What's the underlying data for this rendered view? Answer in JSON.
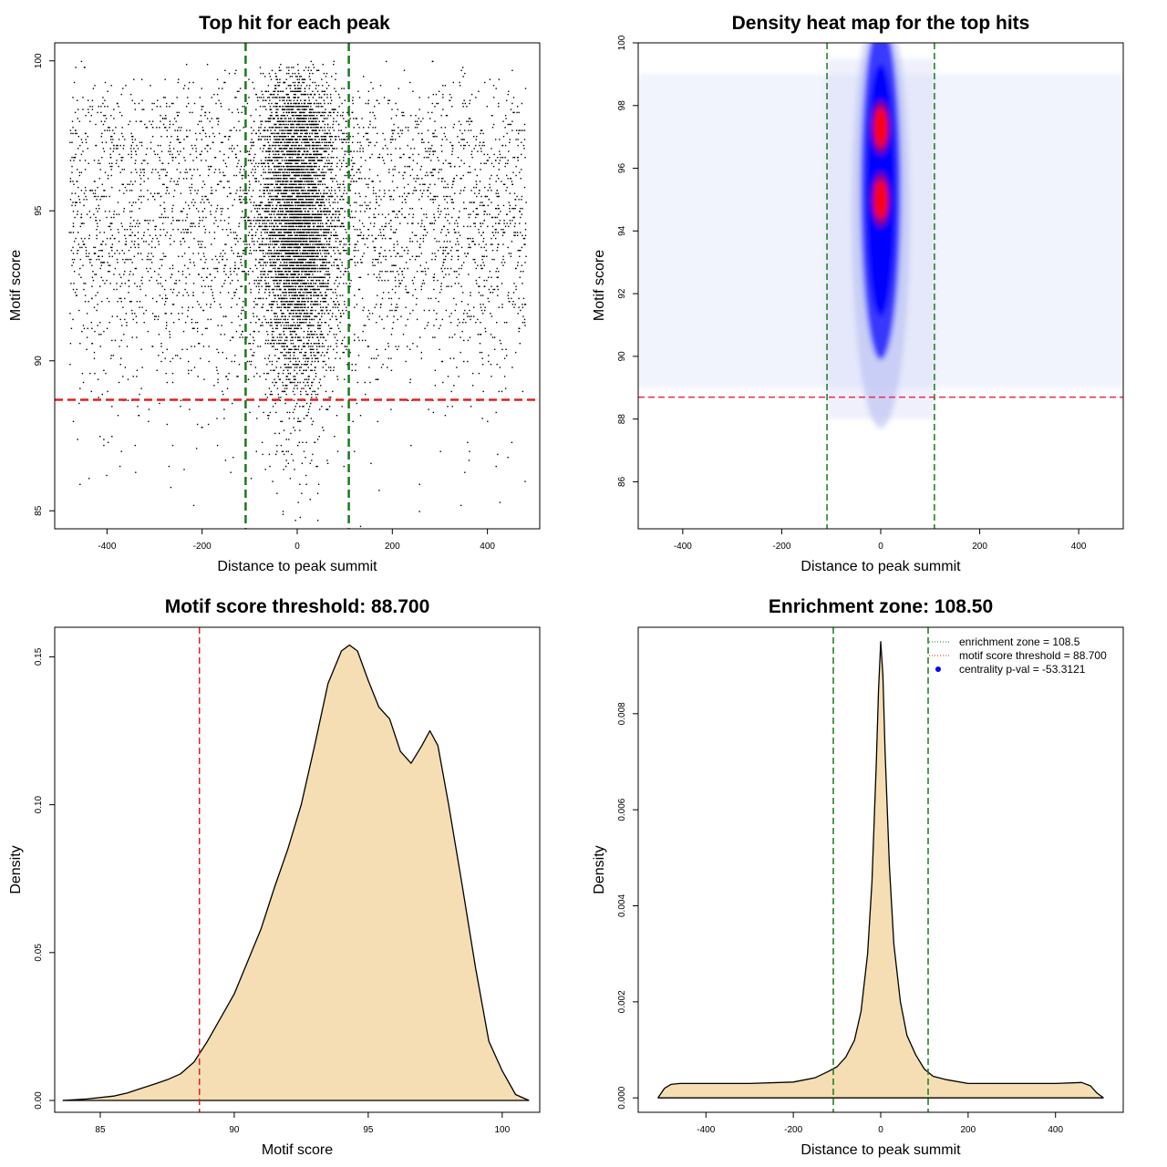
{
  "colors": {
    "threshold_line": "#e02020",
    "zone_line": "#1a7a1a",
    "fill": "#f5deb3",
    "point": "#000000",
    "heat_high": "#ff0000",
    "heat_mid": "#0000ff"
  },
  "chart_data": [
    {
      "type": "scatter",
      "title": "Top hit for each peak",
      "xlabel": "Distance to peak summit",
      "ylabel": "Motif score",
      "xlim": [
        -510,
        510
      ],
      "ylim": [
        84.4,
        100.6
      ],
      "xticks": [
        "-400",
        "-200",
        "0",
        "200",
        "400"
      ],
      "xtick_values": [
        -400,
        -200,
        0,
        200,
        400
      ],
      "yticks": [
        "85",
        "90",
        "95",
        "100"
      ],
      "ytick_values": [
        85,
        90,
        95,
        100
      ],
      "point_cloud": {
        "n_points": 9000,
        "background_x_range": [
          -480,
          480
        ],
        "central_sd": 40,
        "score_range": [
          84.5,
          100
        ],
        "central_fraction": 0.55
      },
      "vlines": [
        -108.5,
        108.5
      ],
      "hline": 88.7
    },
    {
      "type": "heatmap",
      "title": "Density heat map for the top hits",
      "xlabel": "Distance to peak summit",
      "ylabel": "Motif score",
      "xlim": [
        -490,
        490
      ],
      "ylim": [
        84.5,
        100
      ],
      "xticks": [
        "-400",
        "-200",
        "0",
        "200",
        "400"
      ],
      "xtick_values": [
        -400,
        -200,
        0,
        200,
        400
      ],
      "yticks": [
        "86",
        "88",
        "90",
        "92",
        "94",
        "96",
        "98",
        "100"
      ],
      "ytick_values": [
        86,
        88,
        90,
        92,
        94,
        96,
        98,
        100
      ],
      "density_peaks": [
        {
          "x": 0,
          "y": 97.3,
          "weight": 1.0
        },
        {
          "x": 0,
          "y": 95.0,
          "weight": 1.0
        }
      ],
      "vlines": [
        -108.5,
        108.5
      ],
      "hline": 88.7
    },
    {
      "type": "area",
      "title": "Motif score threshold: 88.700",
      "xlabel": "Motif score",
      "ylabel": "Density",
      "xlim": [
        83.3,
        101.4
      ],
      "ylim": [
        -0.004,
        0.16
      ],
      "xticks": [
        "85",
        "90",
        "95",
        "100"
      ],
      "xtick_values": [
        85,
        90,
        95,
        100
      ],
      "yticks": [
        "0.00",
        "0.05",
        "0.10",
        "0.15"
      ],
      "ytick_values": [
        0,
        0.05,
        0.1,
        0.15
      ],
      "x": [
        83.6,
        84.5,
        85.5,
        86.0,
        86.5,
        87.0,
        87.5,
        88.0,
        88.5,
        89.0,
        89.5,
        90.0,
        90.5,
        91.0,
        91.5,
        92.0,
        92.5,
        93.0,
        93.5,
        94.0,
        94.3,
        94.6,
        95.0,
        95.4,
        95.8,
        96.2,
        96.6,
        97.0,
        97.3,
        97.6,
        98.0,
        98.5,
        99.0,
        99.5,
        100.0,
        100.5,
        101.0
      ],
      "y": [
        0.0,
        0.0005,
        0.0015,
        0.0025,
        0.004,
        0.0055,
        0.007,
        0.009,
        0.013,
        0.02,
        0.028,
        0.036,
        0.047,
        0.058,
        0.072,
        0.085,
        0.1,
        0.12,
        0.141,
        0.152,
        0.154,
        0.152,
        0.142,
        0.133,
        0.129,
        0.118,
        0.114,
        0.12,
        0.125,
        0.12,
        0.1,
        0.073,
        0.045,
        0.02,
        0.01,
        0.002,
        0.0
      ],
      "vline": 88.7
    },
    {
      "type": "area",
      "title": "Enrichment zone: 108.50",
      "xlabel": "Distance to peak summit",
      "ylabel": "Density",
      "xlim": [
        -555,
        555
      ],
      "ylim": [
        -0.0003,
        0.0098
      ],
      "xticks": [
        "-400",
        "-200",
        "0",
        "200",
        "400"
      ],
      "xtick_values": [
        -400,
        -200,
        0,
        200,
        400
      ],
      "yticks": [
        "0.000",
        "0.002",
        "0.004",
        "0.006",
        "0.008"
      ],
      "ytick_values": [
        0,
        0.002,
        0.004,
        0.006,
        0.008
      ],
      "x": [
        -510,
        -495,
        -480,
        -460,
        -400,
        -300,
        -200,
        -150,
        -120,
        -100,
        -80,
        -60,
        -45,
        -30,
        -20,
        -10,
        -5,
        0,
        5,
        10,
        20,
        30,
        45,
        60,
        80,
        100,
        120,
        150,
        200,
        300,
        400,
        460,
        480,
        495,
        510
      ],
      "y": [
        0.0,
        0.0002,
        0.00028,
        0.0003,
        0.0003,
        0.0003,
        0.00033,
        0.00042,
        0.00055,
        0.00065,
        0.00085,
        0.0012,
        0.0018,
        0.003,
        0.0045,
        0.007,
        0.0085,
        0.0095,
        0.0088,
        0.0072,
        0.0048,
        0.0032,
        0.002,
        0.0013,
        0.0009,
        0.0006,
        0.00045,
        0.00038,
        0.0003,
        0.0003,
        0.0003,
        0.00032,
        0.00025,
        0.0001,
        0.0
      ],
      "vlines": [
        -108.5,
        108.5
      ],
      "legend": {
        "entries": [
          {
            "label": "enrichment zone = 108.5",
            "kind": "dotted-line",
            "color": "#1a7a1a"
          },
          {
            "label": "motif score threshold = 88.700",
            "kind": "dotted-line",
            "color": "#e02020"
          },
          {
            "label": "centrality p-val = -53.3121",
            "kind": "point",
            "color": "#0000ff"
          }
        ]
      }
    }
  ]
}
